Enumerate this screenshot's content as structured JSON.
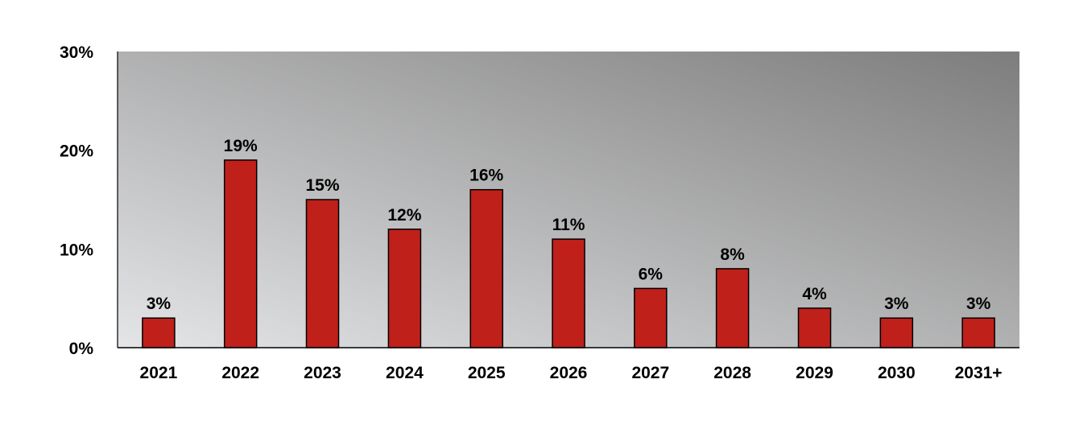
{
  "chart_data": {
    "type": "bar",
    "title": "",
    "xlabel": "",
    "ylabel": "",
    "categories": [
      "2021",
      "2022",
      "2023",
      "2024",
      "2025",
      "2026",
      "2027",
      "2028",
      "2029",
      "2030",
      "2031+"
    ],
    "values": [
      3,
      19,
      15,
      12,
      16,
      11,
      6,
      8,
      4,
      3,
      3
    ],
    "data_labels": [
      "3%",
      "19%",
      "15%",
      "12%",
      "16%",
      "11%",
      "6%",
      "8%",
      "4%",
      "3%",
      "3%"
    ],
    "ylim": [
      0,
      30
    ],
    "yticks": [
      0,
      10,
      20,
      30
    ],
    "ytick_labels": [
      "0%",
      "10%",
      "20%",
      "30%"
    ],
    "grid": false,
    "legend": "none",
    "colors": {
      "bar_fill": "#c0201a",
      "bar_stroke": "#000000",
      "plot_bg_light": "#e4e5e7",
      "plot_bg_dark": "#7d7d7d",
      "axis": "#000000"
    }
  }
}
